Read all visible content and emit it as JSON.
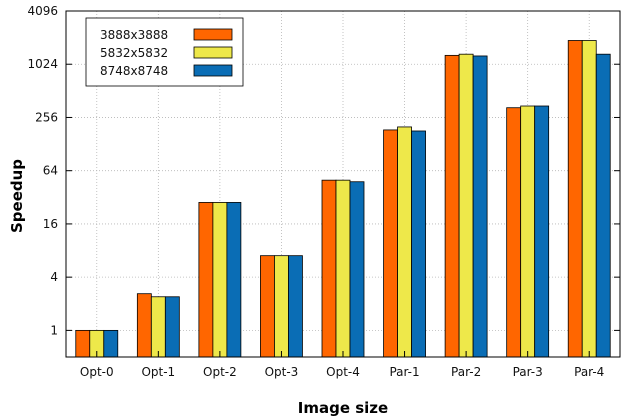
{
  "chart_data": {
    "type": "bar",
    "title": "",
    "xlabel": "Image size",
    "ylabel": "Speedup",
    "y_scale": "log2",
    "ylim": [
      0.5,
      4096
    ],
    "yticks": [
      {
        "value": 1,
        "label": "1"
      },
      {
        "value": 4,
        "label": "4"
      },
      {
        "value": 16,
        "label": "16"
      },
      {
        "value": 64,
        "label": "64"
      },
      {
        "value": 256,
        "label": "256"
      },
      {
        "value": 1024,
        "label": "1024"
      },
      {
        "value": 4096,
        "label": "4096"
      }
    ],
    "grid": true,
    "legend_position": "top-left",
    "categories": [
      "Opt-0",
      "Opt-1",
      "Opt-2",
      "Opt-3",
      "Opt-4",
      "Par-1",
      "Par-2",
      "Par-3",
      "Par-4"
    ],
    "series": [
      {
        "name": "3888x3888",
        "color": "#ff6600",
        "values": [
          1.0,
          2.6,
          28,
          7.0,
          50,
          185,
          1290,
          330,
          1900
        ]
      },
      {
        "name": "5832x5832",
        "color": "#eee84a",
        "values": [
          1.0,
          2.4,
          28,
          7.0,
          50,
          200,
          1330,
          345,
          1900
        ]
      },
      {
        "name": "8748x8748",
        "color": "#0a6db5",
        "values": [
          1.0,
          2.4,
          28,
          7.0,
          48,
          180,
          1270,
          345,
          1330
        ]
      }
    ]
  }
}
